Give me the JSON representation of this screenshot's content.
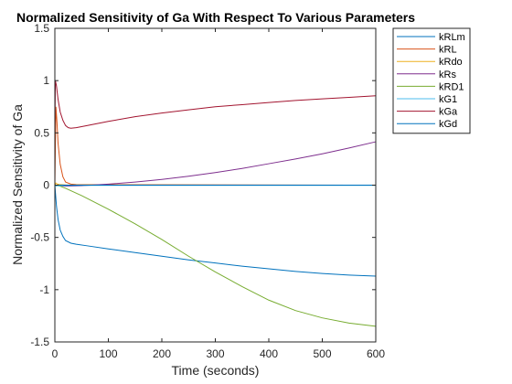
{
  "chart_data": {
    "type": "line",
    "title": "Normalized Sensitivity of Ga With Respect To Various Parameters",
    "xlabel": "Time (seconds)",
    "ylabel": "Normalized Sensitivity of Ga",
    "xlim": [
      0,
      600
    ],
    "ylim": [
      -1.5,
      1.5
    ],
    "xticks": [
      0,
      100,
      200,
      300,
      400,
      500,
      600
    ],
    "xtick_labels": [
      "0",
      "100",
      "200",
      "300",
      "400",
      "500",
      "600"
    ],
    "yticks": [
      -1.5,
      -1,
      -0.5,
      0,
      0.5,
      1,
      1.5
    ],
    "ytick_labels": [
      "-1.5",
      "-1",
      "-0.5",
      "0",
      "0.5",
      "1",
      "1.5"
    ],
    "grid": false,
    "legend_position": "outside-top-right",
    "series": [
      {
        "name": "kRLm",
        "color": "#0072BD",
        "x": [
          0,
          3,
          6,
          10,
          15,
          20,
          30,
          40,
          60,
          100,
          150,
          200,
          250,
          300,
          350,
          400,
          450,
          500,
          550,
          600
        ],
        "y": [
          0,
          -0.2,
          -0.33,
          -0.43,
          -0.49,
          -0.53,
          -0.555,
          -0.565,
          -0.58,
          -0.61,
          -0.645,
          -0.68,
          -0.715,
          -0.745,
          -0.775,
          -0.8,
          -0.825,
          -0.845,
          -0.86,
          -0.87
        ]
      },
      {
        "name": "kRL",
        "color": "#D95319",
        "x": [
          0,
          2,
          4,
          6,
          10,
          15,
          20,
          30,
          40,
          600
        ],
        "y": [
          0,
          0.75,
          0.6,
          0.4,
          0.2,
          0.08,
          0.03,
          0.01,
          0.005,
          0
        ]
      },
      {
        "name": "kRdo",
        "color": "#EDB120",
        "x": [
          0,
          2,
          5,
          10,
          20,
          40,
          600
        ],
        "y": [
          0,
          0.02,
          0.01,
          0.005,
          0.002,
          0.001,
          0
        ]
      },
      {
        "name": "kRs",
        "color": "#7E2F8E",
        "x": [
          0,
          20,
          50,
          100,
          150,
          200,
          250,
          300,
          350,
          400,
          450,
          500,
          550,
          600
        ],
        "y": [
          0,
          -0.01,
          -0.005,
          0.01,
          0.03,
          0.055,
          0.085,
          0.12,
          0.16,
          0.205,
          0.25,
          0.3,
          0.355,
          0.415
        ]
      },
      {
        "name": "kRD1",
        "color": "#77AC30",
        "x": [
          0,
          10,
          20,
          50,
          100,
          150,
          200,
          250,
          300,
          350,
          400,
          450,
          500,
          550,
          600
        ],
        "y": [
          0,
          -0.01,
          -0.03,
          -0.1,
          -0.23,
          -0.37,
          -0.52,
          -0.68,
          -0.83,
          -0.97,
          -1.1,
          -1.2,
          -1.27,
          -1.32,
          -1.35
        ]
      },
      {
        "name": "kG1",
        "color": "#4DBEEE",
        "x": [
          0,
          2,
          5,
          10,
          20,
          40,
          100,
          300,
          600
        ],
        "y": [
          0,
          -0.01,
          -0.005,
          -0.004,
          -0.003,
          -0.002,
          -0.002,
          -0.002,
          -0.002
        ]
      },
      {
        "name": "kGa",
        "color": "#A2142F",
        "x": [
          0,
          1,
          3,
          6,
          10,
          15,
          20,
          25,
          30,
          40,
          60,
          100,
          150,
          200,
          250,
          300,
          350,
          400,
          450,
          500,
          550,
          600
        ],
        "y": [
          0.5,
          1.0,
          0.95,
          0.82,
          0.7,
          0.62,
          0.57,
          0.55,
          0.545,
          0.55,
          0.57,
          0.61,
          0.655,
          0.69,
          0.72,
          0.75,
          0.77,
          0.79,
          0.81,
          0.825,
          0.84,
          0.855
        ]
      },
      {
        "name": "kGd",
        "color": "#0072BD",
        "x": [
          0,
          600
        ],
        "y": [
          0,
          0
        ]
      }
    ]
  }
}
